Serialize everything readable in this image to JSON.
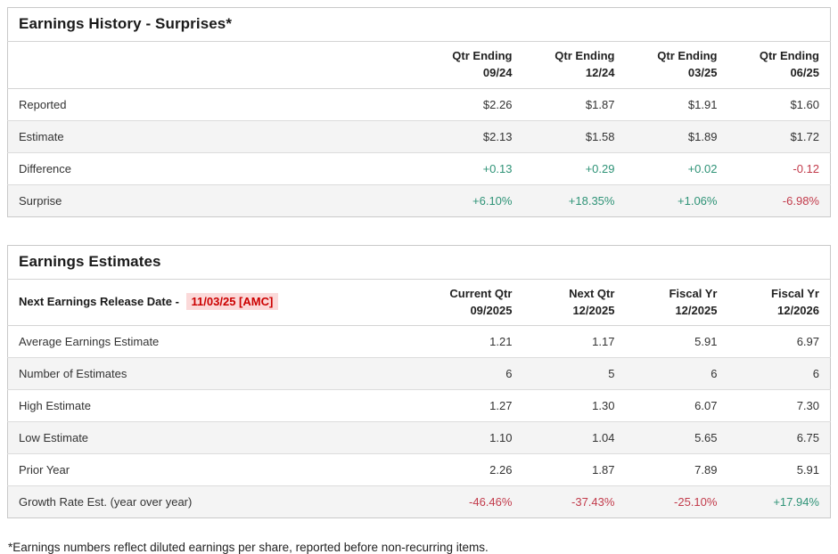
{
  "colors": {
    "positive_value": "#2f9377",
    "negative_value": "#c23b4b",
    "release_date_text": "#cc0000",
    "release_date_highlight": "#fbd9d9",
    "alt_row_background": "#f4f4f4",
    "table_border": "#c9c9c9"
  },
  "surprises_table": {
    "title": "Earnings History - Surprises*",
    "columns": [
      {
        "line1": "Qtr Ending",
        "line2": "09/24"
      },
      {
        "line1": "Qtr Ending",
        "line2": "12/24"
      },
      {
        "line1": "Qtr Ending",
        "line2": "03/25"
      },
      {
        "line1": "Qtr Ending",
        "line2": "06/25"
      }
    ],
    "rows": [
      {
        "label": "Reported",
        "values": [
          "$2.26",
          "$1.87",
          "$1.91",
          "$1.60"
        ]
      },
      {
        "label": "Estimate",
        "values": [
          "$2.13",
          "$1.58",
          "$1.89",
          "$1.72"
        ]
      },
      {
        "label": "Difference",
        "values": [
          "+0.13",
          "+0.29",
          "+0.02",
          "-0.12"
        ]
      },
      {
        "label": "Surprise",
        "values": [
          "+6.10%",
          "+18.35%",
          "+1.06%",
          "-6.98%"
        ]
      }
    ]
  },
  "estimates_table": {
    "title": "Earnings Estimates",
    "release_date_label": "Next Earnings Release Date - ",
    "release_date_value": "11/03/25 [AMC]",
    "columns": [
      {
        "line1": "Current Qtr",
        "line2": "09/2025"
      },
      {
        "line1": "Next Qtr",
        "line2": "12/2025"
      },
      {
        "line1": "Fiscal Yr",
        "line2": "12/2025"
      },
      {
        "line1": "Fiscal Yr",
        "line2": "12/2026"
      }
    ],
    "rows": [
      {
        "label": "Average Earnings Estimate",
        "values": [
          "1.21",
          "1.17",
          "5.91",
          "6.97"
        ]
      },
      {
        "label": "Number of Estimates",
        "values": [
          "6",
          "5",
          "6",
          "6"
        ]
      },
      {
        "label": "High Estimate",
        "values": [
          "1.27",
          "1.30",
          "6.07",
          "7.30"
        ]
      },
      {
        "label": "Low Estimate",
        "values": [
          "1.10",
          "1.04",
          "5.65",
          "6.75"
        ]
      },
      {
        "label": "Prior Year",
        "values": [
          "2.26",
          "1.87",
          "7.89",
          "5.91"
        ]
      },
      {
        "label": "Growth Rate Est. (year over year)",
        "values": [
          "-46.46%",
          "-37.43%",
          "-25.10%",
          "+17.94%"
        ]
      }
    ]
  },
  "footnote": "*Earnings numbers reflect diluted earnings per share, reported before non-recurring items."
}
